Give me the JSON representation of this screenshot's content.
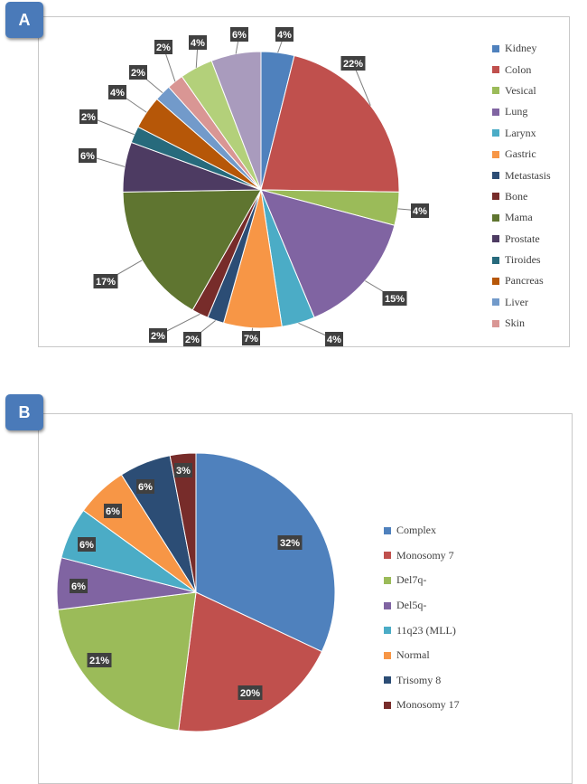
{
  "panels": {
    "a": {
      "badge": "A"
    },
    "b": {
      "badge": "B"
    }
  },
  "chart_data": [
    {
      "type": "pie",
      "panel": "A",
      "categories": [
        "Kidney",
        "Colon",
        "Vesical",
        "Lung",
        "Larynx",
        "Gastric",
        "Metastasis",
        "Bone",
        "Mama",
        "Prostate",
        "Tiroides",
        "Pancreas",
        "Liver",
        "Skin",
        ""
      ],
      "values": [
        4,
        22,
        4,
        15,
        4,
        7,
        2,
        2,
        17,
        6,
        2,
        4,
        2,
        2,
        6
      ],
      "labels": [
        "4%",
        "22%",
        "4%",
        "15%",
        "4%",
        "7%",
        "2%",
        "2%",
        "17%",
        "6%",
        "2%",
        "4%",
        "2%",
        "2%",
        "6%"
      ],
      "colors": [
        "#4f81bd",
        "#c0504d",
        "#9bbb59",
        "#8064a2",
        "#4bacc6",
        "#f79646",
        "#2c4d75",
        "#772c2a",
        "#5f7530",
        "#4d3b62",
        "#276a7c",
        "#b65708",
        "#729aca",
        "#d99694",
        "#a99bbd"
      ],
      "extra_slice_before_last": {
        "label": "4%",
        "value": 4,
        "color": "#b3d07a"
      },
      "legend": [
        "Kidney",
        "Colon",
        "Vesical",
        "Lung",
        "Larynx",
        "Gastric",
        "Metastasis",
        "Bone",
        "Mama",
        "Prostate",
        "Tiroides",
        "Pancreas",
        "Liver",
        "Skin"
      ],
      "legend_position": "right"
    },
    {
      "type": "pie",
      "panel": "B",
      "categories": [
        "Complex",
        "Monosomy 7",
        "Del7q-",
        "Del5q-",
        "11q23 (MLL)",
        "Normal",
        "Trisomy 8",
        "Monosomy 17"
      ],
      "values": [
        32,
        20,
        21,
        6,
        6,
        6,
        6,
        3
      ],
      "labels": [
        "32%",
        "20%",
        "21%",
        "6%",
        "6%",
        "6%",
        "6%",
        "3%"
      ],
      "colors": [
        "#4f81bd",
        "#c0504d",
        "#9bbb59",
        "#8064a2",
        "#4bacc6",
        "#f79646",
        "#2c4d75",
        "#772c2a"
      ],
      "legend": [
        "Complex",
        "Monosomy 7",
        "Del7q-",
        "Del5q-",
        "11q23 (MLL)",
        "Normal",
        "Trisomy 8",
        "Monosomy 17"
      ],
      "legend_position": "right"
    }
  ]
}
